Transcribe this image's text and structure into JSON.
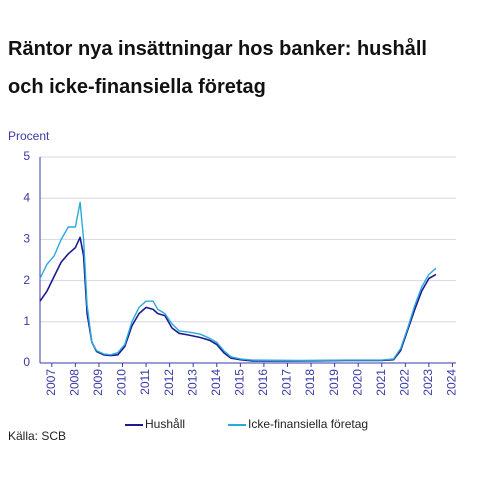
{
  "chart_data": {
    "type": "line",
    "title": "Räntor nya insättningar hos banker: hushåll och icke-finansiella företag",
    "y_label": "Procent",
    "source": "Källa: SCB",
    "x": [
      2007.0,
      2007.3,
      2007.6,
      2007.9,
      2008.2,
      2008.5,
      2008.7,
      2008.85,
      2009.0,
      2009.2,
      2009.4,
      2009.7,
      2010.0,
      2010.3,
      2010.6,
      2010.9,
      2011.2,
      2011.5,
      2011.8,
      2012.0,
      2012.3,
      2012.6,
      2012.9,
      2013.3,
      2013.8,
      2014.2,
      2014.5,
      2014.8,
      2015.1,
      2015.5,
      2016.0,
      2018.0,
      2020.0,
      2021.5,
      2022.0,
      2022.3,
      2022.6,
      2022.9,
      2023.2,
      2023.5,
      2023.8
    ],
    "series": [
      {
        "name": "Hushåll",
        "color": "#1c1c8f",
        "values": [
          1.5,
          1.75,
          2.1,
          2.45,
          2.65,
          2.8,
          3.05,
          2.6,
          1.2,
          0.5,
          0.28,
          0.2,
          0.18,
          0.2,
          0.4,
          0.9,
          1.2,
          1.35,
          1.3,
          1.2,
          1.15,
          0.85,
          0.72,
          0.68,
          0.62,
          0.55,
          0.45,
          0.25,
          0.12,
          0.08,
          0.05,
          0.05,
          0.06,
          0.06,
          0.08,
          0.3,
          0.8,
          1.3,
          1.75,
          2.05,
          2.15
        ]
      },
      {
        "name": "Icke-finansiella företag",
        "color": "#2aa9dd",
        "values": [
          2.05,
          2.4,
          2.6,
          3.0,
          3.3,
          3.3,
          3.9,
          3.0,
          1.4,
          0.5,
          0.3,
          0.22,
          0.2,
          0.25,
          0.45,
          1.0,
          1.35,
          1.5,
          1.5,
          1.3,
          1.2,
          0.95,
          0.78,
          0.75,
          0.7,
          0.6,
          0.5,
          0.3,
          0.15,
          0.1,
          0.07,
          0.06,
          0.07,
          0.07,
          0.1,
          0.35,
          0.85,
          1.4,
          1.85,
          2.15,
          2.3
        ]
      }
    ],
    "xlim": [
      2007.0,
      2024.65
    ],
    "xticks": [
      {
        "value": 2007.5,
        "label": "2007"
      },
      {
        "value": 2008.5,
        "label": "2008"
      },
      {
        "value": 2009.5,
        "label": "2009"
      },
      {
        "value": 2010.5,
        "label": "2010"
      },
      {
        "value": 2011.5,
        "label": "2011"
      },
      {
        "value": 2012.5,
        "label": "2012"
      },
      {
        "value": 2013.5,
        "label": "2013"
      },
      {
        "value": 2014.5,
        "label": "2014"
      },
      {
        "value": 2015.5,
        "label": "2015"
      },
      {
        "value": 2016.5,
        "label": "2016"
      },
      {
        "value": 2017.5,
        "label": "2017"
      },
      {
        "value": 2018.5,
        "label": "2018"
      },
      {
        "value": 2019.5,
        "label": "2019"
      },
      {
        "value": 2020.5,
        "label": "2020"
      },
      {
        "value": 2021.5,
        "label": "2021"
      },
      {
        "value": 2022.5,
        "label": "2022"
      },
      {
        "value": 2023.5,
        "label": "2023"
      },
      {
        "value": 2024.5,
        "label": "2024"
      }
    ],
    "ylim": [
      0,
      5
    ],
    "yticks": [
      0,
      1,
      2,
      3,
      4,
      5
    ],
    "grid": true
  }
}
